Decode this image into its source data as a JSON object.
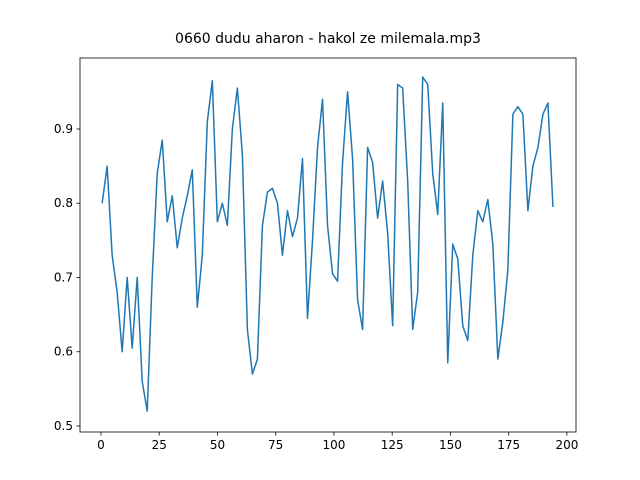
{
  "chart_data": {
    "type": "line",
    "title": "0660 dudu aharon - hakol ze milemala.mp3",
    "x": [
      0.5,
      2.65,
      4.8,
      6.95,
      9.1,
      11.25,
      13.4,
      15.55,
      17.7,
      19.85,
      22,
      24.15,
      26.3,
      28.45,
      30.6,
      32.75,
      34.9,
      37.05,
      39.2,
      41.35,
      43.5,
      45.65,
      47.8,
      49.95,
      52.1,
      54.25,
      56.4,
      58.55,
      60.7,
      62.85,
      65,
      67.15,
      69.3,
      71.45,
      73.6,
      75.75,
      77.9,
      80.05,
      82.2,
      84.35,
      86.5,
      88.65,
      90.8,
      92.95,
      95.1,
      97.25,
      99.4,
      101.55,
      103.7,
      105.85,
      108,
      110.15,
      112.3,
      114.45,
      116.6,
      118.75,
      120.9,
      123.05,
      125.2,
      127.35,
      129.5,
      131.65,
      133.8,
      135.95,
      138.1,
      140.25,
      142.4,
      144.55,
      146.7,
      148.85,
      151,
      153.15,
      155.3,
      157.45,
      159.6,
      161.75,
      163.9,
      166.05,
      168.2,
      170.35,
      172.5,
      174.65,
      176.8,
      178.95,
      181.1,
      183.25,
      185.4,
      187.55,
      189.7,
      191.85,
      194
    ],
    "series": [
      {
        "color": "#1f77b4",
        "values": [
          0.8,
          0.85,
          0.73,
          0.68,
          0.6,
          0.7,
          0.605,
          0.7,
          0.56,
          0.52,
          0.7,
          0.84,
          0.885,
          0.775,
          0.81,
          0.74,
          0.78,
          0.81,
          0.845,
          0.66,
          0.73,
          0.91,
          0.965,
          0.775,
          0.8,
          0.77,
          0.9,
          0.955,
          0.865,
          0.63,
          0.57,
          0.59,
          0.77,
          0.815,
          0.82,
          0.8,
          0.73,
          0.79,
          0.755,
          0.78,
          0.86,
          0.645,
          0.75,
          0.875,
          0.94,
          0.77,
          0.705,
          0.695,
          0.855,
          0.95,
          0.86,
          0.67,
          0.63,
          0.875,
          0.855,
          0.78,
          0.83,
          0.76,
          0.635,
          0.96,
          0.955,
          0.83,
          0.63,
          0.68,
          0.97,
          0.96,
          0.84,
          0.785,
          0.935,
          0.585,
          0.745,
          0.725,
          0.635,
          0.615,
          0.73,
          0.79,
          0.775,
          0.805,
          0.745,
          0.59,
          0.64,
          0.71,
          0.92,
          0.93,
          0.92,
          0.79,
          0.85,
          0.875,
          0.92,
          0.935,
          0.795
        ]
      }
    ],
    "xlim": [
      -9,
      203.9
    ],
    "ylim": [
      0.4919,
      0.9956
    ],
    "xticks": [
      0,
      25,
      50,
      75,
      100,
      125,
      150,
      175,
      200
    ],
    "yticks": [
      0.5,
      0.6,
      0.7,
      0.8,
      0.9
    ]
  }
}
